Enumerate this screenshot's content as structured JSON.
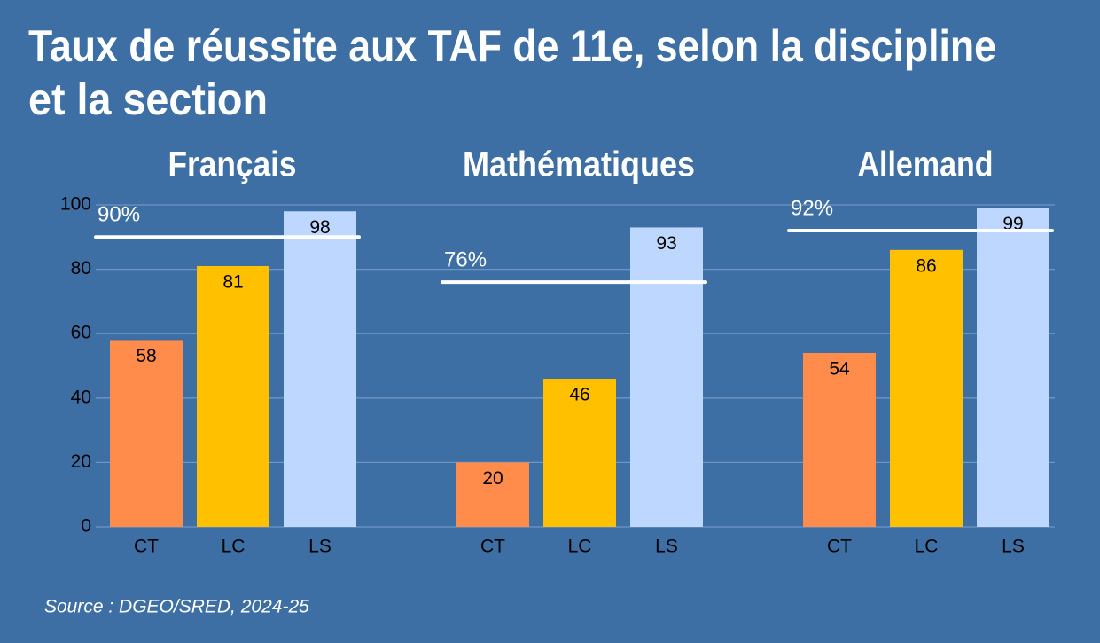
{
  "chart_data": {
    "type": "grouped-bar",
    "title": [
      "Taux de réussite aux TAF de 11e, selon la discipline",
      "et la section"
    ],
    "source": "Source : DGEO/SRED, 2024-25",
    "colors": [
      "#FF8C4A",
      "#FFC000",
      "#BDD7FF"
    ],
    "ylim": [
      0,
      100
    ],
    "yticks": [
      0,
      20,
      40,
      60,
      80,
      100
    ],
    "grid": true,
    "groups": [
      {
        "name": "Français",
        "categories": [
          "CT",
          "LC",
          "LS"
        ],
        "values": [
          58,
          81,
          98
        ],
        "target": {
          "value": 90,
          "label": "90%"
        }
      },
      {
        "name": "Mathématiques",
        "categories": [
          "CT",
          "LC",
          "LS"
        ],
        "values": [
          20,
          46,
          93
        ],
        "target": {
          "value": 76,
          "label": "76%"
        }
      },
      {
        "name": "Allemand",
        "categories": [
          "CT",
          "LC",
          "LS"
        ],
        "values": [
          54,
          86,
          99
        ],
        "target": {
          "value": 92,
          "label": "92%"
        }
      }
    ]
  }
}
